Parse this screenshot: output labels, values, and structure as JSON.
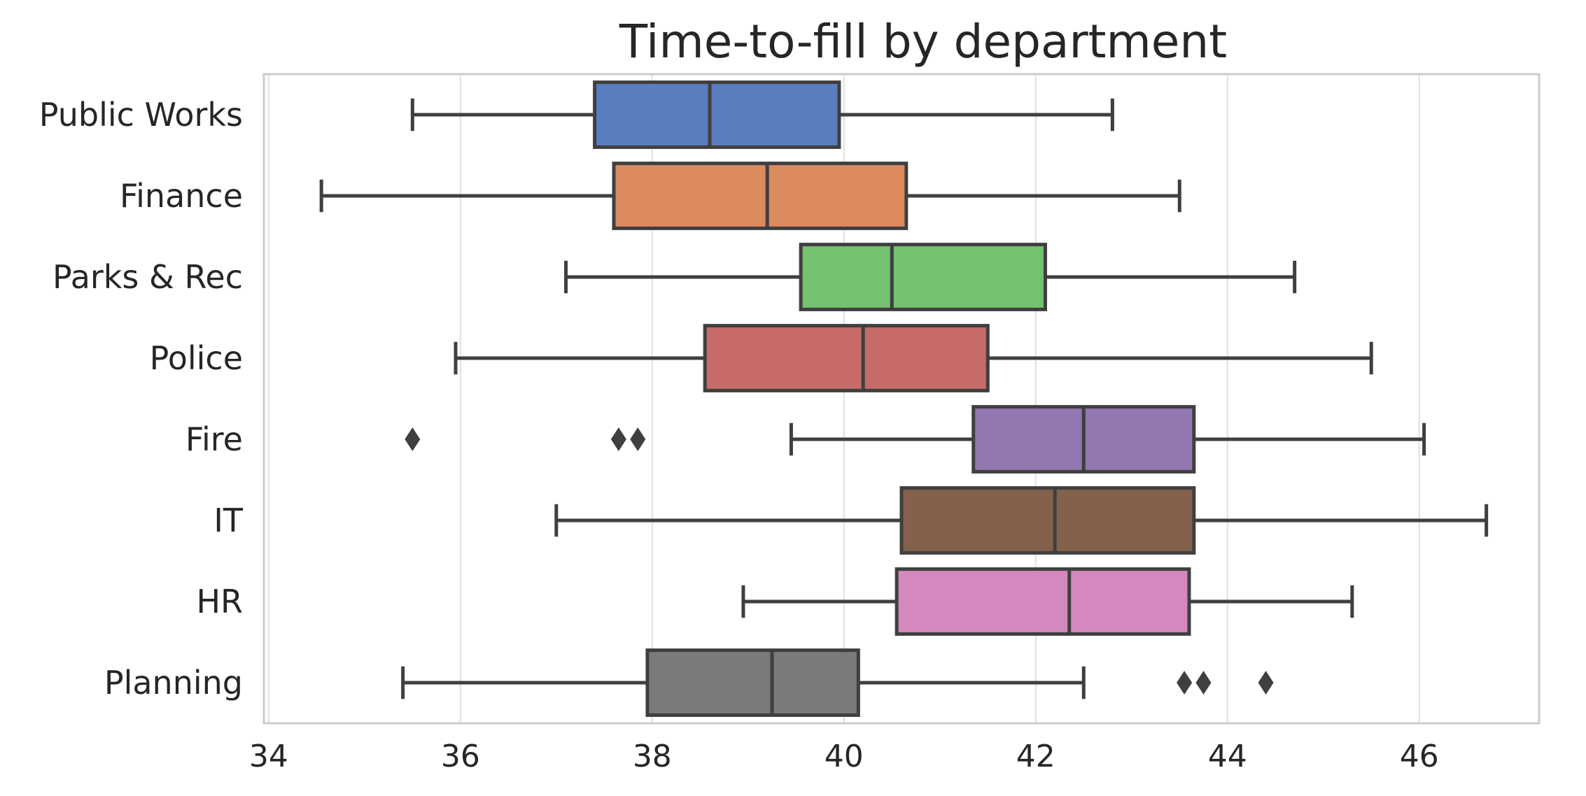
{
  "chart_data": {
    "type": "boxplot",
    "orientation": "horizontal",
    "title": "Time-to-fill by department",
    "xlabel": "",
    "ylabel": "",
    "xlim": [
      33.95,
      47.25
    ],
    "xticks": [
      34,
      36,
      38,
      40,
      42,
      44,
      46
    ],
    "grid": "vertical",
    "categories": [
      "Public Works",
      "Finance",
      "Parks & Rec",
      "Police",
      "Fire",
      "IT",
      "HR",
      "Planning"
    ],
    "colors": [
      "#5a7dc0",
      "#db8a5e",
      "#74c270",
      "#c66b6a",
      "#9278b0",
      "#84614a",
      "#d489be",
      "#7a7a7a"
    ],
    "boxes": [
      {
        "name": "Public Works",
        "whislo": 35.5,
        "q1": 37.4,
        "med": 38.6,
        "q3": 39.95,
        "whishi": 42.8,
        "fliers": []
      },
      {
        "name": "Finance",
        "whislo": 34.55,
        "q1": 37.6,
        "med": 39.2,
        "q3": 40.65,
        "whishi": 43.5,
        "fliers": []
      },
      {
        "name": "Parks & Rec",
        "whislo": 37.1,
        "q1": 39.55,
        "med": 40.5,
        "q3": 42.1,
        "whishi": 44.7,
        "fliers": []
      },
      {
        "name": "Police",
        "whislo": 35.95,
        "q1": 38.55,
        "med": 40.2,
        "q3": 41.5,
        "whishi": 45.5,
        "fliers": []
      },
      {
        "name": "Fire",
        "whislo": 39.45,
        "q1": 41.35,
        "med": 42.5,
        "q3": 43.65,
        "whishi": 46.05,
        "fliers": [
          35.5,
          37.65,
          37.85
        ]
      },
      {
        "name": "IT",
        "whislo": 37.0,
        "q1": 40.6,
        "med": 42.2,
        "q3": 43.65,
        "whishi": 46.7,
        "fliers": []
      },
      {
        "name": "HR",
        "whislo": 38.95,
        "q1": 40.55,
        "med": 42.35,
        "q3": 43.6,
        "whishi": 45.3,
        "fliers": []
      },
      {
        "name": "Planning",
        "whislo": 35.4,
        "q1": 37.95,
        "med": 39.25,
        "q3": 40.15,
        "whishi": 42.5,
        "fliers": [
          43.55,
          43.75,
          44.4
        ]
      }
    ]
  }
}
